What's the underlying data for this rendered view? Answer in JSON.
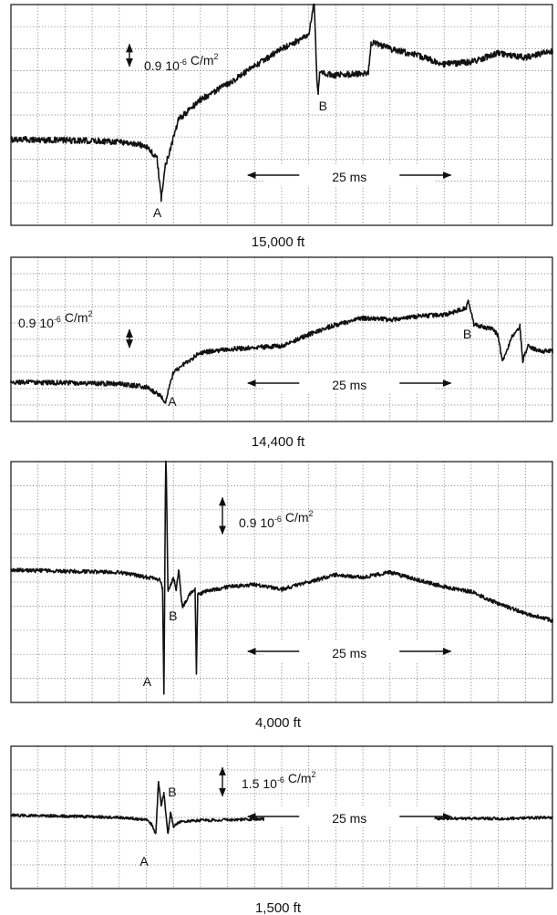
{
  "figure": {
    "panels": [
      {
        "caption": "15,000 ft",
        "amplitude_label": {
          "value": "0.9",
          "exponent": "-6",
          "unit": "C/m",
          "unit_exp": "2"
        },
        "time_label": "25 ms",
        "markers": [
          {
            "label": "A"
          },
          {
            "label": "B"
          }
        ]
      },
      {
        "caption": "14,400 ft",
        "amplitude_label": {
          "value": "0.9",
          "exponent": "-6",
          "unit": "C/m",
          "unit_exp": "2"
        },
        "time_label": "25 ms",
        "markers": [
          {
            "label": "A"
          },
          {
            "label": "B"
          }
        ]
      },
      {
        "caption": "4,000 ft",
        "amplitude_label": {
          "value": "0.9",
          "exponent": "-6",
          "unit": "C/m",
          "unit_exp": "2"
        },
        "time_label": "25 ms",
        "markers": [
          {
            "label": "A"
          },
          {
            "label": "B"
          }
        ]
      },
      {
        "caption": "1,500 ft",
        "amplitude_label": {
          "value": "1.5",
          "exponent": "-6",
          "unit": "C/m",
          "unit_exp": "2"
        },
        "time_label": "25 ms",
        "markers": [
          {
            "label": "A"
          },
          {
            "label": "B"
          }
        ]
      }
    ]
  },
  "chart_data": [
    {
      "type": "line",
      "title": "",
      "caption": "15,000 ft",
      "grid": true,
      "grid_divisions": {
        "x": 20,
        "y": 10
      },
      "xlim": [
        0,
        20
      ],
      "ylim": [
        0,
        10
      ],
      "x_units": "grid divisions (25 ms per 8 div)",
      "y_units": "grid divisions (0.9e-6 C/m^2 per div)",
      "series": [
        {
          "x": [
            0,
            2,
            4,
            5,
            5.4,
            5.55,
            5.7,
            6.2,
            7,
            8,
            9,
            10,
            11,
            11.2,
            11.3,
            11.35,
            11.4,
            12,
            13.2,
            13.3,
            14,
            15,
            16,
            17,
            18,
            19,
            20
          ],
          "y": [
            3.9,
            3.85,
            3.8,
            3.6,
            3.0,
            1.2,
            2.7,
            4.8,
            5.7,
            6.4,
            7.2,
            8.0,
            8.6,
            10.2,
            6.5,
            6.0,
            6.9,
            6.8,
            6.9,
            8.3,
            8.0,
            7.7,
            7.3,
            7.4,
            7.8,
            7.6,
            7.9
          ],
          "noise": 0.14
        }
      ],
      "markers": [
        {
          "label": "A",
          "x": 5.55
        },
        {
          "label": "B",
          "x": 11.4
        }
      ],
      "amplitude_bar_y": [
        7.2,
        8.2
      ],
      "time_bar_x": [
        8.75,
        16.25
      ]
    },
    {
      "type": "line",
      "title": "",
      "caption": "14,400 ft",
      "grid": true,
      "grid_divisions": {
        "x": 20,
        "y": 10
      },
      "xlim": [
        0,
        20
      ],
      "ylim": [
        0,
        10
      ],
      "x_units": "grid divisions (25 ms per 8 div)",
      "y_units": "grid divisions (0.9e-6 C/m^2 per div)",
      "series": [
        {
          "x": [
            0,
            2,
            4,
            5,
            5.5,
            5.7,
            6,
            7,
            8,
            9,
            10,
            11,
            12,
            13,
            14,
            15,
            16,
            16.8,
            16.9,
            17.1,
            17.8,
            18,
            18.15,
            18.3,
            18.5,
            18.8,
            18.9,
            19.1,
            19.5,
            20
          ],
          "y": [
            2.4,
            2.35,
            2.3,
            2.1,
            1.6,
            1.2,
            3.0,
            4.2,
            4.4,
            4.5,
            4.6,
            5.3,
            5.9,
            6.3,
            6.2,
            6.4,
            6.5,
            6.9,
            7.3,
            5.9,
            5.6,
            5.2,
            3.6,
            4.2,
            5.2,
            5.8,
            3.7,
            4.6,
            4.3,
            4.3
          ],
          "noise": 0.14
        }
      ],
      "markers": [
        {
          "label": "A",
          "x": 5.7
        },
        {
          "label": "B",
          "x": 17.0
        }
      ],
      "amplitude_bar_y": [
        4.5,
        5.6
      ],
      "time_bar_x": [
        8.75,
        16.25
      ]
    },
    {
      "type": "line",
      "title": "",
      "caption": "4,000 ft",
      "grid": true,
      "grid_divisions": {
        "x": 20,
        "y": 10
      },
      "xlim": [
        0,
        20
      ],
      "ylim": [
        0,
        10
      ],
      "x_units": "grid divisions (25 ms per 8 div)",
      "y_units": "grid divisions (0.9e-6 C/m^2 per div)",
      "series": [
        {
          "x": [
            0,
            2,
            4,
            5.5,
            5.6,
            5.65,
            5.72,
            5.8,
            6.0,
            6.1,
            6.2,
            6.3,
            6.35,
            6.5,
            6.6,
            6.8,
            6.85,
            6.9,
            7.2,
            8,
            9,
            10,
            11,
            12,
            13,
            14,
            15,
            16,
            17,
            18,
            19,
            20
          ],
          "y": [
            5.5,
            5.45,
            5.4,
            5.1,
            4.7,
            0.3,
            11.0,
            4.6,
            5.2,
            4.7,
            5.5,
            4.2,
            4.0,
            4.3,
            4.5,
            4.7,
            1.2,
            4.5,
            4.6,
            4.8,
            4.9,
            4.7,
            5.0,
            5.3,
            5.2,
            5.4,
            5.1,
            4.8,
            4.6,
            4.1,
            3.7,
            3.4
          ],
          "noise": 0.08
        }
      ],
      "markers": [
        {
          "label": "A",
          "x": 5.65
        },
        {
          "label": "B",
          "x": 6.3
        }
      ],
      "amplitude_bar_y": [
        7.0,
        8.5
      ],
      "time_bar_x": [
        8.75,
        16.25
      ]
    },
    {
      "type": "line",
      "title": "",
      "caption": "1,500 ft",
      "grid": true,
      "grid_divisions": {
        "x": 20,
        "y": 6
      },
      "xlim": [
        0,
        20
      ],
      "ylim": [
        0,
        6
      ],
      "x_units": "grid divisions (25 ms per 8 div)",
      "y_units": "grid divisions (1.5e-6 C/m^2 per div)",
      "series": [
        {
          "x": [
            0,
            2,
            4,
            5,
            5.2,
            5.35,
            5.45,
            5.55,
            5.65,
            5.8,
            5.9,
            6.0,
            6.2,
            6.5,
            8,
            10,
            12,
            14,
            16,
            18,
            20
          ],
          "y": [
            3.1,
            3.05,
            3.0,
            2.9,
            2.7,
            2.3,
            4.5,
            3.5,
            4.0,
            2.3,
            3.2,
            2.6,
            2.8,
            2.85,
            2.9,
            2.95,
            2.95,
            3.0,
            2.95,
            2.95,
            3.0
          ],
          "noise": 0.06
        }
      ],
      "markers": [
        {
          "label": "A",
          "x": 5.3
        },
        {
          "label": "B",
          "x": 5.9
        }
      ],
      "amplitude_bar_y": [
        3.9,
        5.1
      ],
      "time_bar_x": [
        8.75,
        16.25
      ]
    }
  ]
}
